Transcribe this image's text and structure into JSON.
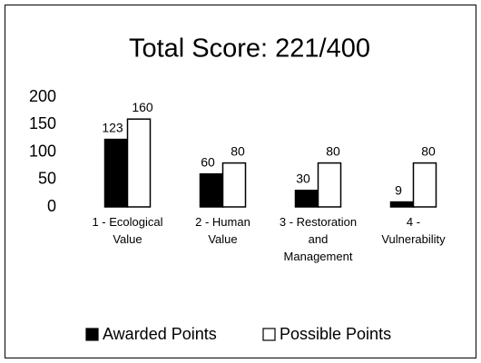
{
  "chart_data": {
    "type": "bar",
    "title": "Total Score: 221/400",
    "categories": [
      "1 - Ecological Value",
      "2 - Human Value",
      "3 - Restoration and Management",
      "4 - Vulnerability"
    ],
    "series": [
      {
        "name": "Awarded Points",
        "color": "#000000",
        "values": [
          123,
          60,
          30,
          9
        ]
      },
      {
        "name": "Possible Points",
        "color": "#ffffff",
        "values": [
          160,
          80,
          80,
          80
        ]
      }
    ],
    "ylim": [
      0,
      200
    ],
    "yticks": [
      0,
      50,
      100,
      150,
      200
    ],
    "grid": false,
    "legend": "bottom"
  }
}
